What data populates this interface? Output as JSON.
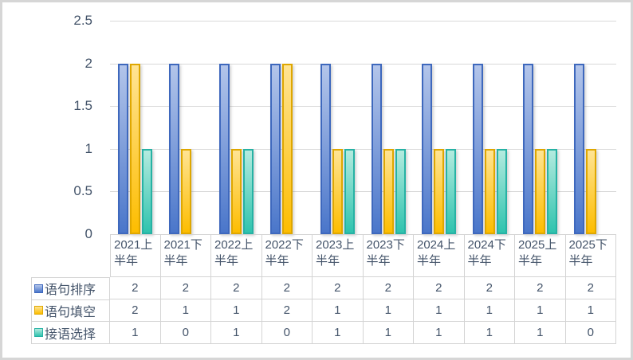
{
  "chart_data": {
    "type": "bar",
    "title": "",
    "categories": [
      "2021上半年",
      "2021下半年",
      "2022上半年",
      "2022下半年",
      "2023上半年",
      "2023下半年",
      "2024上半年",
      "2024下半年",
      "2025上半年",
      "2025下半年"
    ],
    "series": [
      {
        "name": "语句排序",
        "values": [
          2,
          2,
          2,
          2,
          2,
          2,
          2,
          2,
          2,
          2
        ],
        "fill_top": "#b3c5ea",
        "fill_bottom": "#4a76ca",
        "border": "#3e68bd"
      },
      {
        "name": "语句填空",
        "values": [
          2,
          1,
          1,
          2,
          1,
          1,
          1,
          1,
          1,
          1
        ],
        "fill_top": "#ffe494",
        "fill_bottom": "#fdbd00",
        "border": "#dfa700"
      },
      {
        "name": "接语选择",
        "values": [
          1,
          0,
          1,
          0,
          1,
          1,
          1,
          1,
          1,
          0
        ],
        "fill_top": "#b4ebdf",
        "fill_bottom": "#2fc3ae",
        "border": "#26b2a4"
      }
    ],
    "y_axis": {
      "min": 0,
      "max": 2.5,
      "step": 0.5,
      "ticks": [
        "0",
        "0.5",
        "1",
        "1.5",
        "2",
        "2.5"
      ]
    },
    "grid": true,
    "legend_position": "data-table-left",
    "data_table_shown": true,
    "colors": {
      "text": "#44546a",
      "gridline": "#d9d9d9",
      "table_border": "#d4d4d4",
      "frame_border": "#d6d6d6",
      "background": "#ffffff"
    }
  }
}
